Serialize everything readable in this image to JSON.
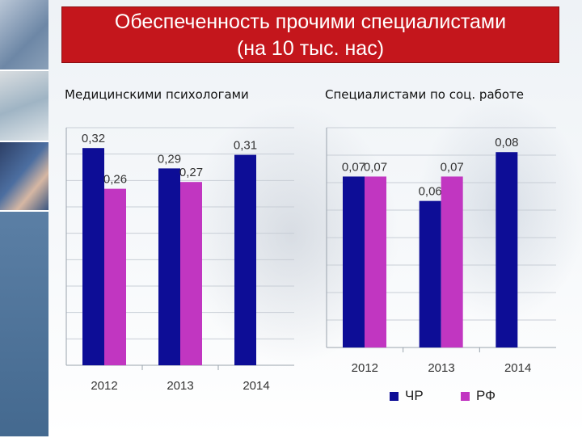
{
  "slide": {
    "title_line1": "Обеспеченность прочими специалистами",
    "title_line2": "(на 10 тыс. нас)"
  },
  "colors": {
    "chr": "#0d0d96",
    "rf": "#c136c1",
    "title_bg": "#c4161c"
  },
  "legend": {
    "chr": "ЧР",
    "rf": "РФ"
  },
  "chart_data": [
    {
      "type": "bar",
      "title": "Медицинскими психологами",
      "categories": [
        "2012",
        "2013",
        "2014"
      ],
      "series": [
        {
          "name": "ЧР",
          "values": [
            0.32,
            0.29,
            0.31
          ],
          "labels": [
            "0,32",
            "0,29",
            "0,31"
          ]
        },
        {
          "name": "РФ",
          "values": [
            0.26,
            0.27,
            null
          ],
          "labels": [
            "0,26",
            "0,27",
            ""
          ]
        }
      ],
      "ylim": [
        0,
        0.35
      ],
      "grid": true,
      "legend": "bottom"
    },
    {
      "type": "bar",
      "title": "Специалистами по соц. работе",
      "categories": [
        "2012",
        "2013",
        "2014"
      ],
      "series": [
        {
          "name": "ЧР",
          "values": [
            0.07,
            0.06,
            0.08
          ],
          "labels": [
            "0,07",
            "0,06",
            "0,08"
          ]
        },
        {
          "name": "РФ",
          "values": [
            0.07,
            0.07,
            null
          ],
          "labels": [
            "0,07",
            "0,07",
            ""
          ]
        }
      ],
      "ylim": [
        0,
        0.09
      ],
      "grid": true,
      "legend": "bottom"
    }
  ]
}
